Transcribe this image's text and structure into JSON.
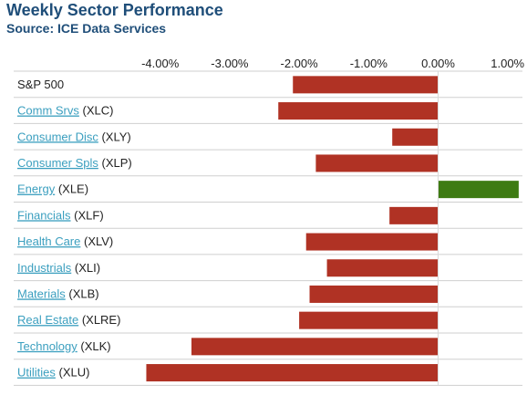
{
  "title": "Weekly Sector Performance",
  "subtitle": "Source: ICE Data Services",
  "colors": {
    "negative": "#b03224",
    "positive": "#3e7b13",
    "link": "#3b9fbf",
    "title": "#1f4e79"
  },
  "chart_data": {
    "type": "bar",
    "orientation": "horizontal",
    "title": "Weekly Sector Performance",
    "xlim": [
      -4.5,
      1.5
    ],
    "tick_values": [
      -4,
      -3,
      -2,
      -1,
      0,
      1
    ],
    "tick_labels": [
      "-4.00%",
      "-3.00%",
      "-2.00%",
      "-1.00%",
      "0.00%",
      "1.00%"
    ],
    "grid": "horizontal row separators",
    "categories": [
      {
        "name": "S&P 500",
        "ticker": "",
        "link": false
      },
      {
        "name": "Comm Srvs",
        "ticker": "(XLC)",
        "link": true
      },
      {
        "name": "Consumer Disc",
        "ticker": "(XLY)",
        "link": true
      },
      {
        "name": "Consumer Spls",
        "ticker": "(XLP)",
        "link": true
      },
      {
        "name": "Energy",
        "ticker": "(XLE)",
        "link": true
      },
      {
        "name": "Financials",
        "ticker": "(XLF)",
        "link": true
      },
      {
        "name": "Health Care",
        "ticker": "(XLV)",
        "link": true
      },
      {
        "name": "Industrials",
        "ticker": "(XLI)",
        "link": true
      },
      {
        "name": "Materials",
        "ticker": "(XLB)",
        "link": true
      },
      {
        "name": "Real Estate",
        "ticker": "(XLRE)",
        "link": true
      },
      {
        "name": "Technology",
        "ticker": "(XLK)",
        "link": true
      },
      {
        "name": "Utilities",
        "ticker": "(XLU)",
        "link": true
      }
    ],
    "values": [
      -2.09,
      -2.3,
      -0.66,
      -1.76,
      1.16,
      -0.7,
      -1.9,
      -1.6,
      -1.85,
      -2.0,
      -3.55,
      -4.2
    ]
  }
}
